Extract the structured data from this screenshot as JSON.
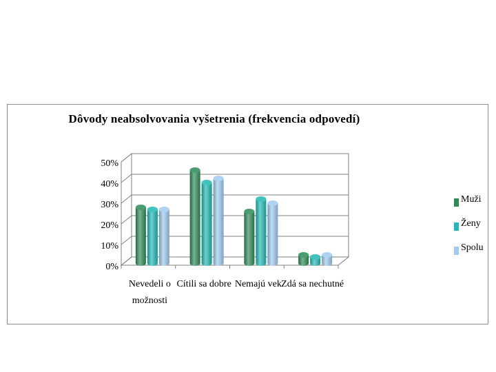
{
  "chart_data": {
    "type": "bar",
    "title": "Dôvody neabsolvovania vyšetrenia (frekvencia odpovedí)",
    "categories": [
      "Nevedeli o možnosti",
      "Cítili sa dobre",
      "Nemajú vek",
      "Zdá sa nechutné"
    ],
    "category_lines": [
      [
        "Nevedeli o",
        "možnosti"
      ],
      [
        "Cítili sa dobre"
      ],
      [
        "Nemajú vek"
      ],
      [
        "Zdá sa nechutné"
      ]
    ],
    "series": [
      {
        "name": "Muži",
        "values": [
          27,
          45,
          25,
          4
        ],
        "color": "#2e8b57"
      },
      {
        "name": "Ženy",
        "values": [
          26,
          39,
          31,
          3
        ],
        "color": "#22b8b5"
      },
      {
        "name": "Spolu",
        "values": [
          26,
          41,
          29,
          4
        ],
        "color": "#9ecbf0"
      }
    ],
    "yticks": [
      "0%",
      "10%",
      "20%",
      "30%",
      "40%",
      "50%"
    ],
    "ylim": [
      0,
      50
    ],
    "grid": true,
    "legend_position": "right"
  }
}
